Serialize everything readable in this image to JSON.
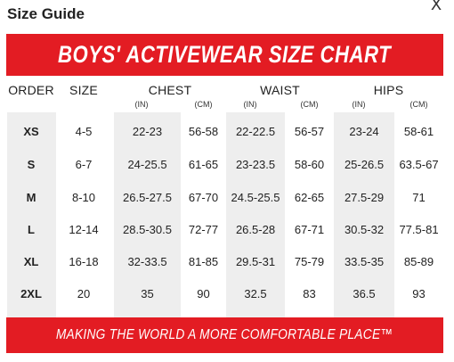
{
  "modal": {
    "title": "Size Guide",
    "close_label": "X"
  },
  "chart": {
    "title": "BOYS' ACTIVEWEAR SIZE CHART",
    "footer": "MAKING THE WORLD A MORE COMFORTABLE PLACE™",
    "colors": {
      "accent": "#e31c23",
      "shade": "#eeeeee"
    },
    "headers": {
      "order": "ORDER",
      "size": "SIZE",
      "chest": "CHEST",
      "waist": "WAIST",
      "hips": "HIPS"
    },
    "units": {
      "chest_in": "(IN)",
      "chest_cm": "(CM)",
      "waist_in": "(IN)",
      "waist_cm": "(CM)",
      "hips_in": "(IN)",
      "hips_cm": "(CM)"
    },
    "rows": [
      {
        "order": "XS",
        "size": "4-5",
        "chest_in": "22-23",
        "chest_cm": "56-58",
        "waist_in": "22-22.5",
        "waist_cm": "56-57",
        "hips_in": "23-24",
        "hips_cm": "58-61"
      },
      {
        "order": "S",
        "size": "6-7",
        "chest_in": "24-25.5",
        "chest_cm": "61-65",
        "waist_in": "23-23.5",
        "waist_cm": "58-60",
        "hips_in": "25-26.5",
        "hips_cm": "63.5-67"
      },
      {
        "order": "M",
        "size": "8-10",
        "chest_in": "26.5-27.5",
        "chest_cm": "67-70",
        "waist_in": "24.5-25.5",
        "waist_cm": "62-65",
        "hips_in": "27.5-29",
        "hips_cm": "71"
      },
      {
        "order": "L",
        "size": "12-14",
        "chest_in": "28.5-30.5",
        "chest_cm": "72-77",
        "waist_in": "26.5-28",
        "waist_cm": "67-71",
        "hips_in": "30.5-32",
        "hips_cm": "77.5-81"
      },
      {
        "order": "XL",
        "size": "16-18",
        "chest_in": "32-33.5",
        "chest_cm": "81-85",
        "waist_in": "29.5-31",
        "waist_cm": "75-79",
        "hips_in": "33.5-35",
        "hips_cm": "85-89"
      },
      {
        "order": "2XL",
        "size": "20",
        "chest_in": "35",
        "chest_cm": "90",
        "waist_in": "32.5",
        "waist_cm": "83",
        "hips_in": "36.5",
        "hips_cm": "93"
      }
    ]
  }
}
